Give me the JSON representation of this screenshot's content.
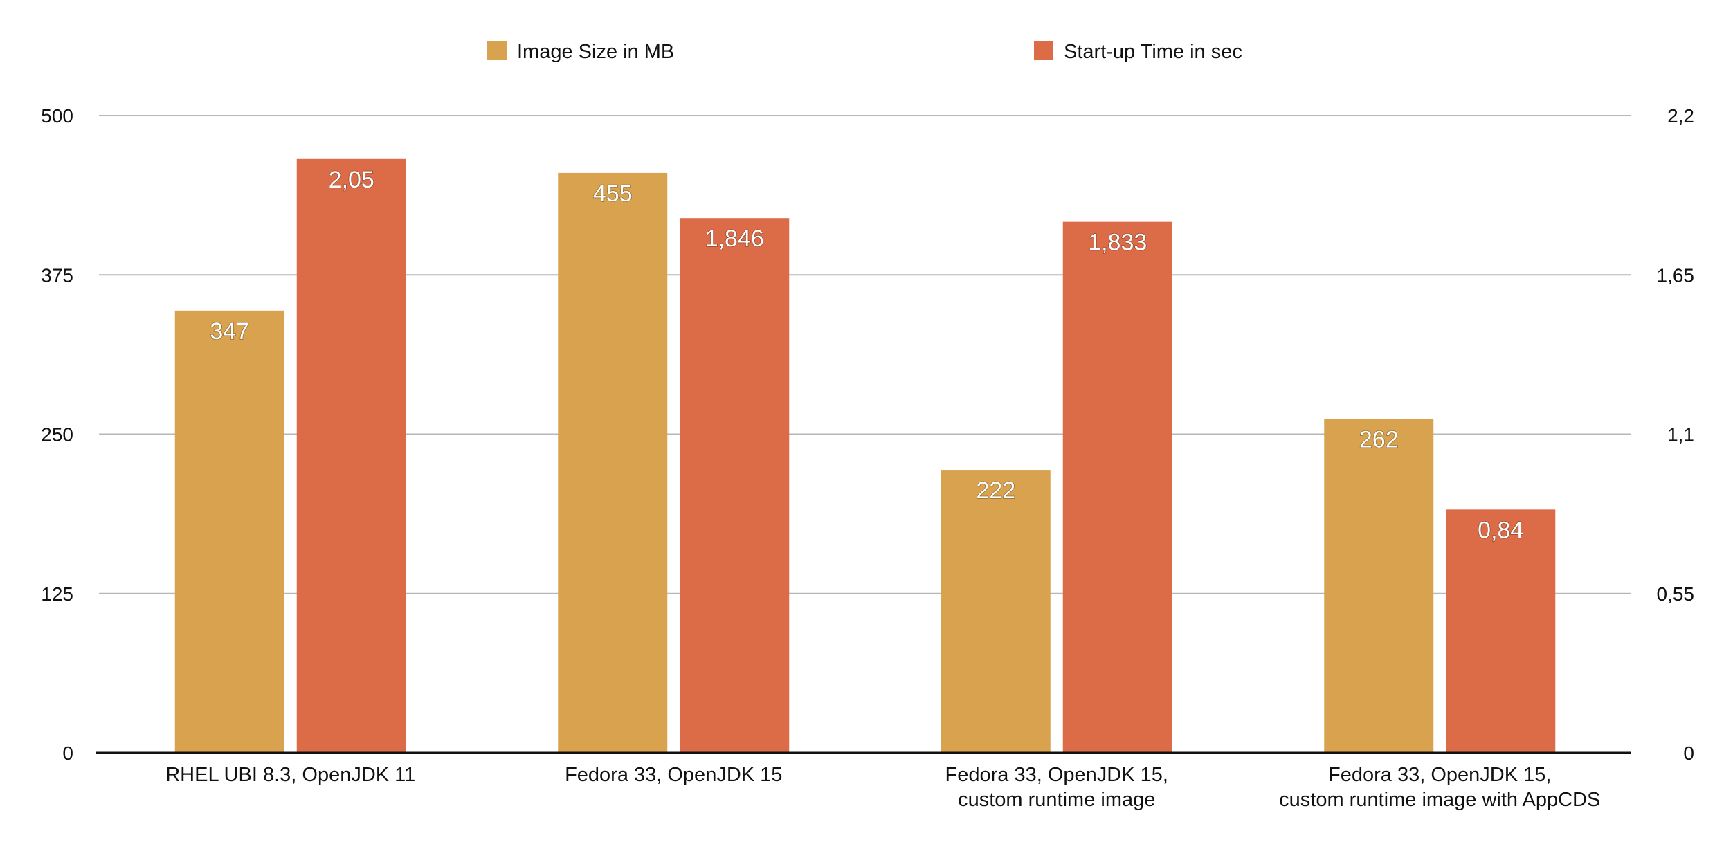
{
  "chart_data": {
    "type": "bar",
    "categories": [
      [
        "RHEL UBI 8.3, OpenJDK 11"
      ],
      [
        "Fedora 33, OpenJDK 15"
      ],
      [
        "Fedora 33, OpenJDK 15,",
        "custom runtime image"
      ],
      [
        "Fedora 33, OpenJDK 15,",
        "custom runtime image with AppCDS"
      ]
    ],
    "series": [
      {
        "name": "Image Size in MB",
        "axis": "left",
        "color": "#D9A24E",
        "values": [
          347,
          455,
          222,
          262
        ],
        "labels": [
          "347",
          "455",
          "222",
          "262"
        ]
      },
      {
        "name": "Start-up Time  in sec",
        "axis": "right",
        "color": "#DC6C48",
        "values": [
          2.05,
          1.846,
          1.833,
          0.84
        ],
        "labels": [
          "2,05",
          "1,846",
          "1,833",
          "0,84"
        ]
      }
    ],
    "y_left": {
      "ylim": [
        0,
        500
      ],
      "ticks": [
        "0",
        "125",
        "250",
        "375",
        "500"
      ]
    },
    "y_right": {
      "ylim": [
        0,
        2.2
      ],
      "ticks": [
        "0",
        "0,55",
        "1,1",
        "1,65",
        "2,2"
      ]
    },
    "grid": true,
    "legend": "top"
  }
}
